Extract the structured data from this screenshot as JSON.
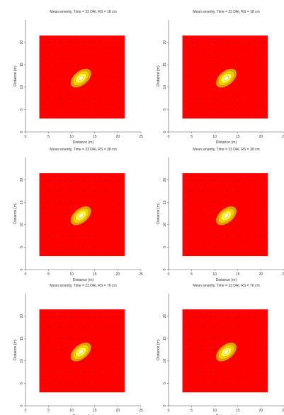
{
  "colors": {
    "background": "#ffffff",
    "field": "#ff0000",
    "contour_outer": "#e5a000",
    "contour_mid": "#f5d000",
    "contour_inner": "#ffff33",
    "contour_core": "#ffffff",
    "grid_points": "#7a0000",
    "axis": "#555555"
  },
  "chart_data": [
    {
      "type": "heatmap",
      "title": "Mean severity, Time = 23 DAI, RS = 18 cm",
      "xlabel": "Distance (m)",
      "ylabel": "Distance (m)",
      "xlim": [
        0,
        25
      ],
      "ylim": [
        0,
        25
      ],
      "xticks": [
        "0",
        "5",
        "10",
        "15",
        "20",
        "25"
      ],
      "yticks": [
        "0",
        "5",
        "10",
        "15",
        "20"
      ],
      "field_x_range": [
        3,
        21.5
      ],
      "field_y_range": [
        3,
        21.5
      ],
      "hotspot": {
        "x": 12,
        "y": 12,
        "levels": 4
      }
    },
    {
      "type": "heatmap",
      "title": "Mean severity, Time = 23 DAI, RS = 18 cm",
      "xlabel": "Distance (m)",
      "ylabel": "Distance (m)",
      "xlim": [
        0,
        25
      ],
      "ylim": [
        0,
        25
      ],
      "xticks": [
        "0",
        "5",
        "10",
        "15",
        "20",
        "25"
      ],
      "yticks": [
        "0",
        "5",
        "10",
        "15",
        "20"
      ],
      "field_x_range": [
        3,
        21.5
      ],
      "field_y_range": [
        3,
        21.5
      ],
      "hotspot": {
        "x": 12.5,
        "y": 12,
        "levels": 4
      }
    },
    {
      "type": "heatmap",
      "title": "Mean severity, Time = 23 DAI, RS = 38 cm",
      "xlabel": "Distance (m)",
      "ylabel": "Distance (m)",
      "xlim": [
        0,
        25
      ],
      "ylim": [
        0,
        25
      ],
      "xticks": [
        "0",
        "5",
        "10",
        "15",
        "20",
        "25"
      ],
      "yticks": [
        "0",
        "5",
        "10",
        "15",
        "20"
      ],
      "field_x_range": [
        3,
        21.5
      ],
      "field_y_range": [
        3,
        21.5
      ],
      "hotspot": {
        "x": 12,
        "y": 12,
        "levels": 4
      }
    },
    {
      "type": "heatmap",
      "title": "Mean severity, Time = 23 DAI, RS = 38 cm",
      "xlabel": "Distance (m)",
      "ylabel": "Distance (m)",
      "xlim": [
        0,
        25
      ],
      "ylim": [
        0,
        25
      ],
      "xticks": [
        "0",
        "5",
        "10",
        "15",
        "20",
        "25"
      ],
      "yticks": [
        "0",
        "5",
        "10",
        "15",
        "20"
      ],
      "field_x_range": [
        3,
        21.5
      ],
      "field_y_range": [
        3,
        21.5
      ],
      "hotspot": {
        "x": 12.5,
        "y": 12,
        "levels": 4
      }
    },
    {
      "type": "heatmap",
      "title": "Mean severity, Time = 23 DAI, RS = 76 cm",
      "xlabel": "Distance (m)",
      "ylabel": "Distance (m)",
      "xlim": [
        0,
        25
      ],
      "ylim": [
        0,
        25
      ],
      "xticks": [
        "0",
        "5",
        "10",
        "15",
        "20",
        "25"
      ],
      "yticks": [
        "0",
        "5",
        "10",
        "15",
        "20"
      ],
      "field_x_range": [
        3,
        21.5
      ],
      "field_y_range": [
        3,
        21.5
      ],
      "hotspot": {
        "x": 12,
        "y": 12,
        "levels": 4
      }
    },
    {
      "type": "heatmap",
      "title": "Mean severity, Time = 23 DAI, RS = 76 cm",
      "xlabel": "Distance (m)",
      "ylabel": "Distance (m)",
      "xlim": [
        0,
        25
      ],
      "ylim": [
        0,
        25
      ],
      "xticks": [
        "0",
        "5",
        "10",
        "15",
        "20",
        "25"
      ],
      "yticks": [
        "0",
        "5",
        "10",
        "15",
        "20"
      ],
      "field_x_range": [
        3,
        21.5
      ],
      "field_y_range": [
        3,
        21.5
      ],
      "hotspot": {
        "x": 12.5,
        "y": 12,
        "levels": 4
      }
    }
  ]
}
